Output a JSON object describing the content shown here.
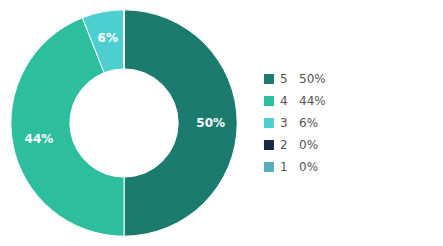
{
  "chart_data": {
    "type": "pie",
    "categories": [
      "5   50%",
      "4   44%",
      "3   6%",
      "2   0%",
      "1   0%"
    ],
    "values": [
      50,
      44,
      6,
      0,
      0
    ],
    "value_labels": [
      "50%",
      "44%",
      "6%",
      null,
      null
    ],
    "colors": [
      "#1b7b6e",
      "#2dbe9e",
      "#4dcfcf",
      "#1a2744",
      "#5aadbe"
    ],
    "data_labels": true,
    "legend": "right"
  }
}
